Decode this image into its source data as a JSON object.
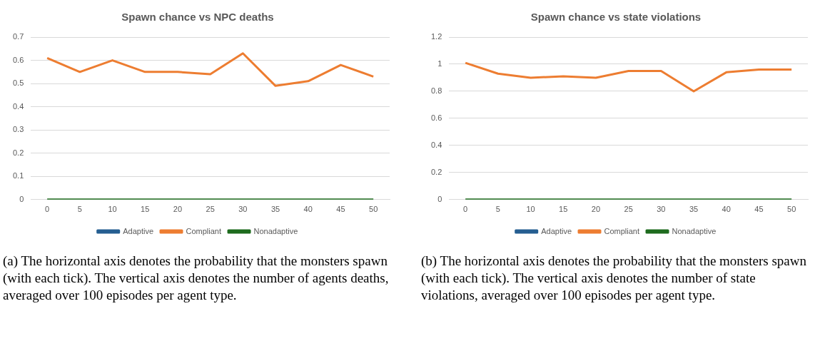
{
  "chart_data": [
    {
      "type": "line",
      "title": "Spawn chance vs NPC deaths",
      "categories": [
        "0",
        "5",
        "10",
        "15",
        "20",
        "25",
        "30",
        "35",
        "40",
        "45",
        "50"
      ],
      "series": [
        {
          "name": "Adaptive",
          "color": "#255e91",
          "values": [
            null,
            null,
            null,
            null,
            null,
            null,
            null,
            null,
            null,
            null,
            null
          ]
        },
        {
          "name": "Compliant",
          "color": "#ed7d31",
          "values": [
            0.61,
            0.55,
            0.6,
            0.55,
            0.55,
            0.54,
            0.63,
            0.49,
            0.51,
            0.58,
            0.53
          ]
        },
        {
          "name": "Nonadaptive",
          "color": "#1e6b1e",
          "values": [
            0,
            0,
            0,
            0,
            0,
            0,
            0,
            0,
            0,
            0,
            0
          ]
        }
      ],
      "ylim": [
        0,
        0.7
      ],
      "yticks": [
        0,
        0.1,
        0.2,
        0.3,
        0.4,
        0.5,
        0.6,
        0.7
      ],
      "grid": "y",
      "legend": "bottom",
      "marker": "none",
      "line_style": "solid",
      "annotations": [
        "(a) The horizontal axis denotes the probability that the monsters spawn (with each tick). The vertical axis denotes the number of agents deaths, averaged over 100 episodes per agent type."
      ]
    },
    {
      "type": "line",
      "title": "Spawn chance vs state violations",
      "categories": [
        "0",
        "5",
        "10",
        "15",
        "20",
        "25",
        "30",
        "35",
        "40",
        "45",
        "50"
      ],
      "series": [
        {
          "name": "Adaptive",
          "color": "#255e91",
          "values": [
            null,
            null,
            null,
            null,
            null,
            null,
            null,
            null,
            null,
            null,
            null
          ]
        },
        {
          "name": "Compliant",
          "color": "#ed7d31",
          "values": [
            1.01,
            0.93,
            0.9,
            0.91,
            0.9,
            0.95,
            0.95,
            0.8,
            0.94,
            0.96,
            0.96
          ]
        },
        {
          "name": "Nonadaptive",
          "color": "#1e6b1e",
          "values": [
            0,
            0,
            0,
            0,
            0,
            0,
            0,
            0,
            0,
            0,
            0
          ]
        }
      ],
      "ylim": [
        0,
        1.2
      ],
      "yticks": [
        0,
        0.2,
        0.4,
        0.6,
        0.8,
        1,
        1.2
      ],
      "grid": "y",
      "legend": "bottom",
      "marker": "none",
      "line_style": "solid",
      "annotations": [
        "(b) The horizontal axis denotes the probability that the monsters spawn (with each tick). The vertical axis denotes the number of state violations, averaged over 100 episodes per agent type."
      ]
    }
  ]
}
